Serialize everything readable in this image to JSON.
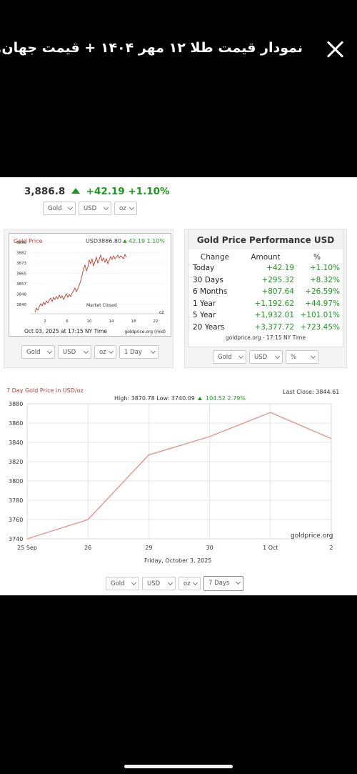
{
  "header": {
    "title": "نمودار قیمت طلا ۱۲ مهر ۱۴۰۴ + قیمت جهان..."
  },
  "quote": {
    "price": "3,886.8",
    "change": "+42.19",
    "change_pct": "+1.10%"
  },
  "selectors_top": [
    "Gold",
    "USD",
    "oz"
  ],
  "mini_chart": {
    "title": "Gold Price",
    "price": "USD3886.80",
    "change": "42.19",
    "change_pct": "1.10%",
    "status": "Market Closed",
    "unit": "oz",
    "timestamp": "Oct 03, 2025 at 17:15 NY Time",
    "source": "goldprice.org (mid)",
    "y_ticks": [
      "3890",
      "3882",
      "3873",
      "3865",
      "3857",
      "3848",
      "3840"
    ],
    "x_ticks": [
      "2",
      "6",
      "10",
      "14",
      "18",
      "22"
    ]
  },
  "selectors_mini": [
    "Gold",
    "USD",
    "oz",
    "1 Day"
  ],
  "performance": {
    "title": "Gold Price Performance USD",
    "headers": [
      "Change",
      "Amount",
      "%"
    ],
    "rows": [
      {
        "period": "Today",
        "amount": "+42.19",
        "pct": "+1.10%"
      },
      {
        "period": "30 Days",
        "amount": "+295.32",
        "pct": "+8.32%"
      },
      {
        "period": "6 Months",
        "amount": "+807.64",
        "pct": "+26.59%"
      },
      {
        "period": "1 Year",
        "amount": "+1,192.62",
        "pct": "+44.97%"
      },
      {
        "period": "5 Year",
        "amount": "+1,932.01",
        "pct": "+101.01%"
      },
      {
        "period": "20 Years",
        "amount": "+3,377.72",
        "pct": "+723.45%"
      }
    ],
    "source": "goldprice.org - 17:15 NY Time"
  },
  "selectors_perf": [
    "Gold",
    "USD",
    "%"
  ],
  "big_chart": {
    "title": "7 Day Gold Price in USD/oz",
    "high_low": "High: 3870.78 Low: 3740.09",
    "change": "104.52 2.79%",
    "last_close": "Last Close: 3844.61",
    "watermark": "goldprice.org",
    "date_label": "Friday, October 3, 2025"
  },
  "selectors_big": [
    "Gold",
    "USD",
    "oz",
    "7 Days"
  ],
  "chart_data": {
    "type": "line",
    "title": "7 Day Gold Price in USD/oz",
    "xlabel": "Friday, October 3, 2025",
    "ylabel": "",
    "x": [
      "25 Sep",
      "26",
      "29",
      "30",
      "1 Oct",
      "2"
    ],
    "series": [
      {
        "name": "",
        "values": [
          3740,
          3760,
          3827,
          3846,
          3871,
          3844
        ]
      }
    ],
    "y_ticks": [
      3740,
      3760,
      3780,
      3800,
      3820,
      3840,
      3860,
      3880
    ],
    "ylim": [
      3740,
      3880
    ],
    "grid": true,
    "color": "#e8928a"
  }
}
